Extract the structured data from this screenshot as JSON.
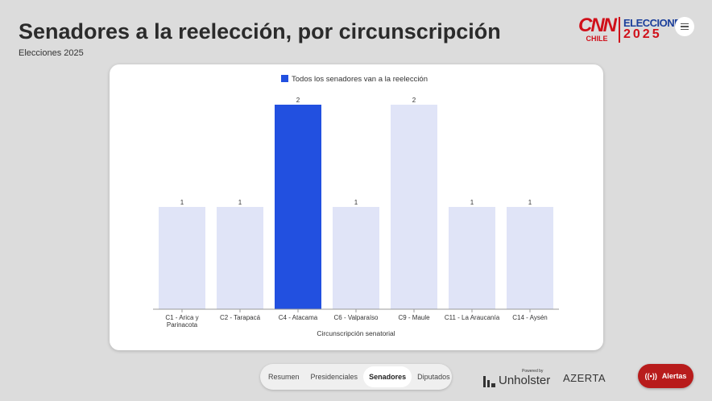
{
  "header": {
    "title": "Senadores a la reelección, por circunscripción",
    "subtitle": "Elecciones 2025"
  },
  "logo": {
    "brand": "CNN",
    "region": "CHILE",
    "event": "ELECCIONES",
    "year": "2025"
  },
  "nav": {
    "items": [
      "Resumen",
      "Presidenciales",
      "Senadores",
      "Diputados"
    ],
    "active": "Senadores"
  },
  "footer": {
    "powered_by": "Powered by",
    "unholster": "Unholster",
    "azerta": "AZERTA",
    "alert_label": "Alertas"
  },
  "colors": {
    "highlight": "#2250e0",
    "default": "#e0e4f7"
  },
  "chart_data": {
    "type": "bar",
    "title": "",
    "legend": [
      {
        "label": "Todos los senadores van a la reelección",
        "color": "#2250e0"
      }
    ],
    "legend_position": "top",
    "xlabel": "Circunscripción senatorial",
    "ylabel": "",
    "ylim": [
      0,
      2
    ],
    "grid": false,
    "categories": [
      "C1 - Arica y Parinacota",
      "C2 - Tarapacá",
      "C4 - Atacama",
      "C6 - Valparaíso",
      "C9 - Maule",
      "C11 - La Araucanía",
      "C14 - Aysén"
    ],
    "category_lines": [
      [
        "C1 - Arica y",
        "Parinacota"
      ],
      [
        "C2 - Tarapacá"
      ],
      [
        "C4 - Atacama"
      ],
      [
        "C6 - Valparaíso"
      ],
      [
        "C9 - Maule"
      ],
      [
        "C11 - La Araucanía"
      ],
      [
        "C14 - Aysén"
      ]
    ],
    "values": [
      1,
      1,
      2,
      1,
      2,
      1,
      1
    ],
    "highlighted": [
      false,
      false,
      true,
      false,
      false,
      false,
      false
    ]
  }
}
